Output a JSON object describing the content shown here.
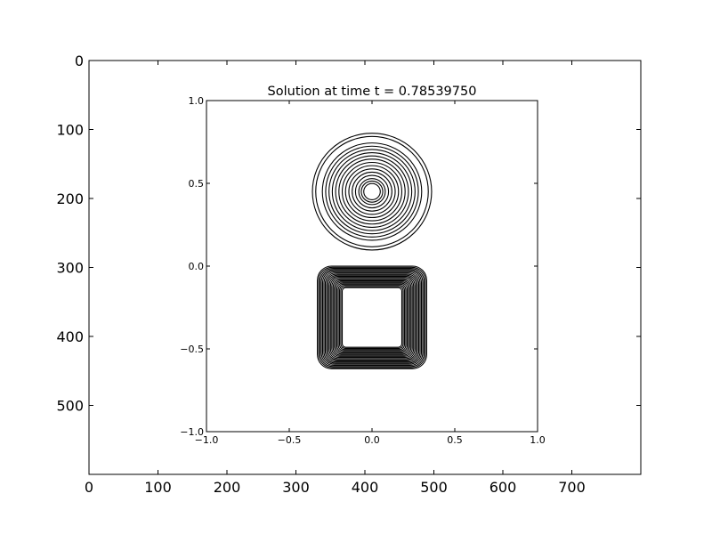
{
  "chart_data": [
    {
      "type": "image",
      "x_ticks": [
        0,
        100,
        200,
        300,
        400,
        500,
        600,
        700
      ],
      "y_ticks": [
        0,
        100,
        200,
        300,
        400,
        500
      ],
      "xlim": [
        0,
        800
      ],
      "ylim": [
        600,
        0
      ],
      "y_inverted": true,
      "grid": false
    },
    {
      "type": "contour",
      "title": "Solution at time t =     0.78539750",
      "xlim": [
        -1.0,
        1.0
      ],
      "ylim": [
        -1.0,
        1.0
      ],
      "x_ticks": [
        "−1.0",
        "−0.5",
        "0.0",
        "0.5",
        "1.0"
      ],
      "y_ticks": [
        "−1.0",
        "−0.5",
        "0.0",
        "0.5",
        "1.0"
      ],
      "x_tick_values": [
        -1.0,
        -0.5,
        0.0,
        0.5,
        1.0
      ],
      "y_tick_values": [
        -1.0,
        -0.5,
        0.0,
        0.5,
        1.0
      ],
      "grid": false,
      "line_color": "#000000",
      "shapes": [
        {
          "name": "cone",
          "kind": "circle",
          "center": [
            0.0,
            0.45
          ],
          "radii": [
            0.36,
            0.34,
            0.3,
            0.28,
            0.26,
            0.24,
            0.22,
            0.2,
            0.18,
            0.16,
            0.14,
            0.12,
            0.1,
            0.08,
            0.065,
            0.05
          ]
        },
        {
          "name": "square-pulse",
          "kind": "square",
          "center": [
            0.0,
            -0.31
          ],
          "outer_half": [
            0.33,
            0.31
          ],
          "inner_half": [
            0.18,
            0.18
          ],
          "levels": 20
        }
      ]
    }
  ]
}
